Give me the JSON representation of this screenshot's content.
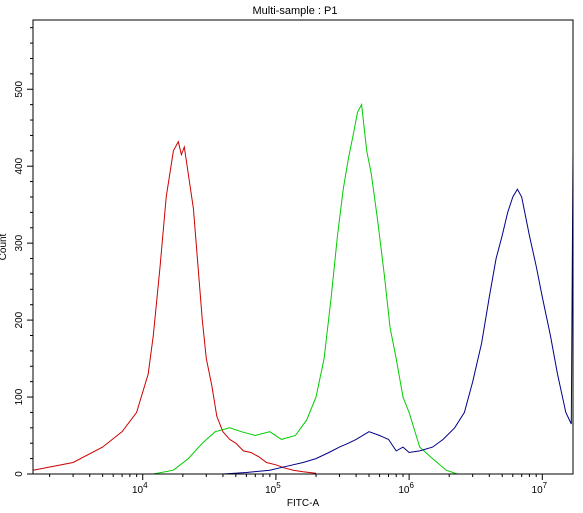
{
  "chart_data": {
    "type": "line",
    "title": "Multi-sample : P1",
    "xlabel": "FITC-A",
    "ylabel": "Count",
    "xscale": "log",
    "xlim": [
      1500,
      17000000
    ],
    "ylim": [
      0,
      590
    ],
    "x_ticks": [
      {
        "value": 10000,
        "base": "10",
        "exp": "4"
      },
      {
        "value": 100000,
        "base": "10",
        "exp": "5"
      },
      {
        "value": 1000000,
        "base": "10",
        "exp": "6"
      },
      {
        "value": 10000000,
        "base": "10",
        "exp": "7"
      }
    ],
    "y_ticks": [
      {
        "value": 0,
        "label": "0"
      },
      {
        "value": 100,
        "label": "100"
      },
      {
        "value": 200,
        "label": "200"
      },
      {
        "value": 300,
        "label": "300"
      },
      {
        "value": 400,
        "label": "400"
      },
      {
        "value": 500,
        "label": "500"
      }
    ],
    "grid": false,
    "series": [
      {
        "color": "#cc0000",
        "x": [
          1500,
          3000,
          5000,
          7000,
          9000,
          11000,
          12000,
          13500,
          15000,
          17000,
          18500,
          19500,
          20500,
          22000,
          24000,
          26000,
          28000,
          30000,
          33000,
          36000,
          40000,
          45000,
          50000,
          57000,
          65000,
          75000,
          85000,
          100000,
          115000,
          135000,
          160000,
          200000
        ],
        "y": [
          5,
          15,
          35,
          55,
          80,
          130,
          180,
          270,
          360,
          420,
          432,
          415,
          425,
          390,
          345,
          270,
          200,
          150,
          115,
          75,
          55,
          45,
          40,
          30,
          28,
          22,
          15,
          12,
          8,
          5,
          3,
          1
        ]
      },
      {
        "color": "#00cc00",
        "x": [
          12000,
          17000,
          22000,
          28000,
          35000,
          45000,
          55000,
          70000,
          90000,
          110000,
          140000,
          170000,
          200000,
          230000,
          260000,
          290000,
          320000,
          350000,
          380000,
          410000,
          440000,
          480000,
          520000,
          580000,
          650000,
          720000,
          800000,
          900000,
          1000000,
          1200000,
          1500000,
          1900000,
          2300000
        ],
        "y": [
          0,
          5,
          20,
          40,
          55,
          60,
          55,
          50,
          55,
          45,
          50,
          70,
          100,
          150,
          230,
          310,
          370,
          410,
          440,
          470,
          480,
          420,
          390,
          330,
          260,
          190,
          150,
          100,
          80,
          35,
          20,
          5,
          0
        ]
      },
      {
        "color": "#000088",
        "x": [
          40000,
          60000,
          90000,
          120000,
          160000,
          200000,
          250000,
          300000,
          350000,
          400000,
          500000,
          600000,
          700000,
          800000,
          900000,
          1000000,
          1200000,
          1500000,
          1800000,
          2200000,
          2600000,
          3000000,
          3500000,
          4000000,
          4500000,
          5000000,
          5500000,
          6000000,
          6500000,
          7000000,
          8000000,
          9000000,
          10000000,
          11500000,
          13000000,
          15000000,
          16500000,
          17000000
        ],
        "y": [
          0,
          2,
          5,
          10,
          15,
          20,
          28,
          35,
          40,
          45,
          55,
          50,
          45,
          30,
          35,
          28,
          30,
          35,
          45,
          60,
          80,
          120,
          170,
          230,
          280,
          310,
          340,
          360,
          370,
          360,
          310,
          270,
          230,
          180,
          130,
          80,
          65,
          420
        ]
      }
    ]
  }
}
